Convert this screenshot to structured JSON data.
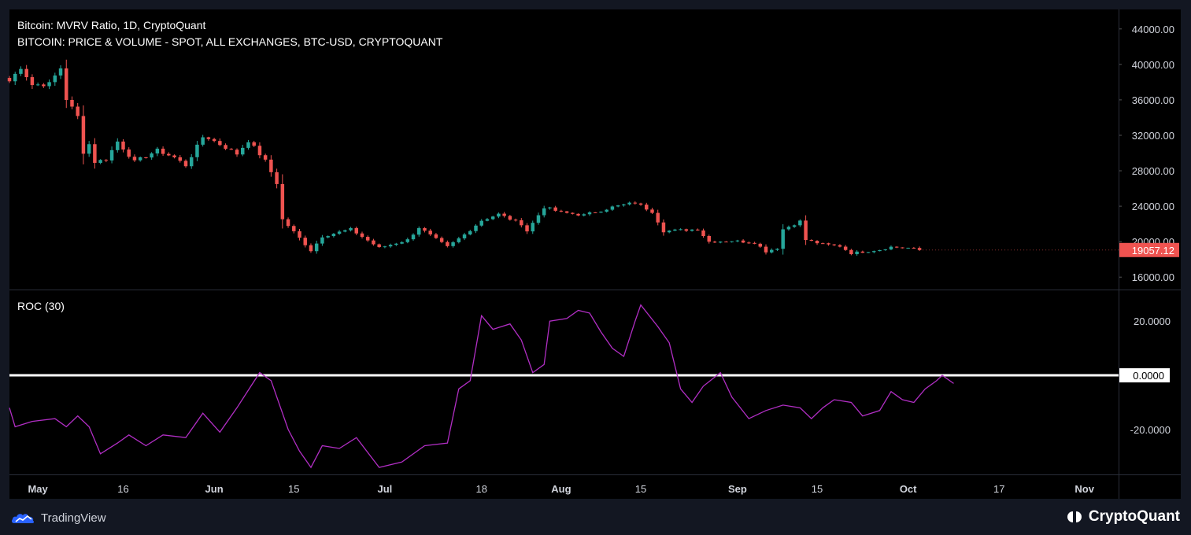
{
  "header": {
    "series_title": "Bitcoin: MVRV Ratio, 1D, CryptoQuant",
    "price_title": "BITCOIN: PRICE & VOLUME - SPOT, ALL EXCHANGES, BTC-USD, CRYPTOQUANT",
    "indicator_title": "ROC (30)"
  },
  "footer": {
    "left_brand": "TradingView",
    "right_brand": "CryptoQuant"
  },
  "colors": {
    "up": "#26a69a",
    "down": "#ef5350",
    "roc_line": "#b12ec4",
    "zero_line": "#ffffff",
    "price_badge": "#ef5350"
  },
  "chart_data": [
    {
      "type": "candlestick",
      "title": "BITCOIN: PRICE & VOLUME - SPOT, ALL EXCHANGES, BTC-USD, CRYPTOQUANT",
      "x_start": "2022-04-26",
      "x_end": "2022-11-07",
      "y_ticks": [
        "44000.00",
        "40000.00",
        "36000.00",
        "32000.00",
        "28000.00",
        "24000.00",
        "20000.00",
        "16000.00"
      ],
      "ylim": [
        14600,
        46200
      ],
      "last_price_label": "19057.12",
      "last_price": 19057.12,
      "close_anchors": [
        [
          "2022-04-26",
          38100
        ],
        [
          "2022-04-28",
          39700
        ],
        [
          "2022-04-30",
          37700
        ],
        [
          "2022-05-03",
          37800
        ],
        [
          "2022-05-05",
          39600
        ],
        [
          "2022-05-06",
          36100
        ],
        [
          "2022-05-08",
          34100
        ],
        [
          "2022-05-09",
          30100
        ],
        [
          "2022-05-10",
          31000
        ],
        [
          "2022-05-11",
          29000
        ],
        [
          "2022-05-13",
          29300
        ],
        [
          "2022-05-15",
          31300
        ],
        [
          "2022-05-18",
          29000
        ],
        [
          "2022-05-22",
          30300
        ],
        [
          "2022-05-25",
          29500
        ],
        [
          "2022-05-27",
          28600
        ],
        [
          "2022-05-30",
          31800
        ],
        [
          "2022-05-31",
          31700
        ],
        [
          "2022-06-05",
          29900
        ],
        [
          "2022-06-07",
          31400
        ],
        [
          "2022-06-10",
          29100
        ],
        [
          "2022-06-12",
          26600
        ],
        [
          "2022-06-13",
          22500
        ],
        [
          "2022-06-16",
          20400
        ],
        [
          "2022-06-18",
          19000
        ],
        [
          "2022-06-20",
          20600
        ],
        [
          "2022-06-25",
          21400
        ],
        [
          "2022-06-30",
          19300
        ],
        [
          "2022-07-05",
          20200
        ],
        [
          "2022-07-07",
          21600
        ],
        [
          "2022-07-12",
          19400
        ],
        [
          "2022-07-15",
          20800
        ],
        [
          "2022-07-18",
          22400
        ],
        [
          "2022-07-21",
          23100
        ],
        [
          "2022-07-25",
          22000
        ],
        [
          "2022-07-26",
          21200
        ],
        [
          "2022-07-29",
          23900
        ],
        [
          "2022-08-01",
          23300
        ],
        [
          "2022-08-05",
          23000
        ],
        [
          "2022-08-10",
          23900
        ],
        [
          "2022-08-14",
          24400
        ],
        [
          "2022-08-17",
          23400
        ],
        [
          "2022-08-19",
          21200
        ],
        [
          "2022-08-25",
          21400
        ],
        [
          "2022-08-27",
          20000
        ],
        [
          "2022-08-31",
          20100
        ],
        [
          "2022-09-04",
          19900
        ],
        [
          "2022-09-06",
          18900
        ],
        [
          "2022-09-08",
          19300
        ],
        [
          "2022-09-09",
          21400
        ],
        [
          "2022-09-12",
          22300
        ],
        [
          "2022-09-13",
          20200
        ],
        [
          "2022-09-16",
          19700
        ],
        [
          "2022-09-19",
          19500
        ],
        [
          "2022-09-21",
          18700
        ],
        [
          "2022-09-26",
          19100
        ],
        [
          "2022-09-28",
          19400
        ],
        [
          "2022-10-01",
          19300
        ],
        [
          "2022-10-03",
          19057
        ]
      ]
    },
    {
      "type": "line",
      "title": "ROC (30)",
      "y_ticks": [
        "20.0000",
        "0.0000",
        "-20.0000"
      ],
      "ylim": [
        -36.6,
        31.4
      ],
      "zero_label": "0.0000",
      "series": [
        {
          "points": [
            [
              "2022-04-26",
              -12
            ],
            [
              "2022-04-27",
              -19
            ],
            [
              "2022-04-30",
              -17
            ],
            [
              "2022-05-04",
              -16
            ],
            [
              "2022-05-06",
              -19
            ],
            [
              "2022-05-08",
              -15
            ],
            [
              "2022-05-10",
              -19
            ],
            [
              "2022-05-12",
              -29
            ],
            [
              "2022-05-15",
              -25
            ],
            [
              "2022-05-17",
              -22
            ],
            [
              "2022-05-20",
              -26
            ],
            [
              "2022-05-23",
              -22
            ],
            [
              "2022-05-27",
              -23
            ],
            [
              "2022-05-30",
              -14
            ],
            [
              "2022-06-02",
              -21
            ],
            [
              "2022-06-05",
              -12
            ],
            [
              "2022-06-09",
              1
            ],
            [
              "2022-06-11",
              -2
            ],
            [
              "2022-06-14",
              -20
            ],
            [
              "2022-06-16",
              -28
            ],
            [
              "2022-06-18",
              -34
            ],
            [
              "2022-06-20",
              -26
            ],
            [
              "2022-06-23",
              -27
            ],
            [
              "2022-06-26",
              -23
            ],
            [
              "2022-06-30",
              -34
            ],
            [
              "2022-07-04",
              -32
            ],
            [
              "2022-07-08",
              -26
            ],
            [
              "2022-07-12",
              -25
            ],
            [
              "2022-07-14",
              -5
            ],
            [
              "2022-07-16",
              -2
            ],
            [
              "2022-07-18",
              22
            ],
            [
              "2022-07-20",
              17
            ],
            [
              "2022-07-23",
              19
            ],
            [
              "2022-07-25",
              13
            ],
            [
              "2022-07-27",
              1
            ],
            [
              "2022-07-29",
              4
            ],
            [
              "2022-07-30",
              20
            ],
            [
              "2022-08-02",
              21
            ],
            [
              "2022-08-04",
              24
            ],
            [
              "2022-08-06",
              23
            ],
            [
              "2022-08-08",
              16
            ],
            [
              "2022-08-10",
              10
            ],
            [
              "2022-08-12",
              7
            ],
            [
              "2022-08-14",
              20
            ],
            [
              "2022-08-15",
              26
            ],
            [
              "2022-08-18",
              18
            ],
            [
              "2022-08-20",
              12
            ],
            [
              "2022-08-22",
              -5
            ],
            [
              "2022-08-24",
              -10
            ],
            [
              "2022-08-26",
              -4
            ],
            [
              "2022-08-29",
              1
            ],
            [
              "2022-08-31",
              -8
            ],
            [
              "2022-09-03",
              -16
            ],
            [
              "2022-09-06",
              -13
            ],
            [
              "2022-09-09",
              -11
            ],
            [
              "2022-09-12",
              -12
            ],
            [
              "2022-09-14",
              -16
            ],
            [
              "2022-09-16",
              -12
            ],
            [
              "2022-09-18",
              -9
            ],
            [
              "2022-09-21",
              -10
            ],
            [
              "2022-09-23",
              -15
            ],
            [
              "2022-09-26",
              -13
            ],
            [
              "2022-09-28",
              -6
            ],
            [
              "2022-09-30",
              -9
            ],
            [
              "2022-10-02",
              -10
            ],
            [
              "2022-10-04",
              -5
            ],
            [
              "2022-10-06",
              -2
            ],
            [
              "2022-10-07",
              0
            ],
            [
              "2022-10-09",
              -3
            ]
          ]
        }
      ]
    }
  ],
  "x_axis": {
    "ticks": [
      {
        "label": "May",
        "date": "2022-05-01"
      },
      {
        "label": "16",
        "date": "2022-05-16"
      },
      {
        "label": "Jun",
        "date": "2022-06-01"
      },
      {
        "label": "15",
        "date": "2022-06-15"
      },
      {
        "label": "Jul",
        "date": "2022-07-01"
      },
      {
        "label": "18",
        "date": "2022-07-18"
      },
      {
        "label": "Aug",
        "date": "2022-08-01"
      },
      {
        "label": "15",
        "date": "2022-08-15"
      },
      {
        "label": "Sep",
        "date": "2022-09-01"
      },
      {
        "label": "15",
        "date": "2022-09-15"
      },
      {
        "label": "Oct",
        "date": "2022-10-01"
      },
      {
        "label": "17",
        "date": "2022-10-17"
      },
      {
        "label": "Nov",
        "date": "2022-11-01"
      }
    ]
  }
}
